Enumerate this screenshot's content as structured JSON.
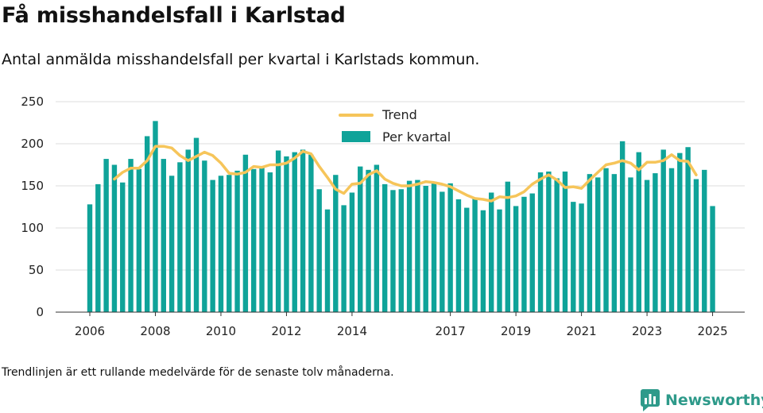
{
  "header": {
    "title": "Få misshandelsfall i Karlstad",
    "subtitle": "Antal anmälda misshandelsfall per kvartal i Karlstads kommun."
  },
  "footnote": "Trendlinjen är ett rullande medelvärde för de senaste tolv månaderna.",
  "brand": {
    "name": "Newsworthy",
    "icon": "bar-chart-speech-icon"
  },
  "colors": {
    "bars": "#0fa399",
    "trend": "#f6c55a",
    "grid": "#dddddd",
    "brand": "#2e9a8a"
  },
  "chart_data": {
    "type": "bar",
    "grid": true,
    "legend_position": "top-center",
    "ylim": [
      0,
      250
    ],
    "yticks": [
      0,
      50,
      100,
      150,
      200,
      250
    ],
    "xtick_labels": [
      {
        "label": "2006",
        "index": 0
      },
      {
        "label": "2008",
        "index": 8
      },
      {
        "label": "2010",
        "index": 16
      },
      {
        "label": "2012",
        "index": 24
      },
      {
        "label": "2014",
        "index": 32
      },
      {
        "label": "2017",
        "index": 44
      },
      {
        "label": "2019",
        "index": 52
      },
      {
        "label": "2021",
        "index": 60
      },
      {
        "label": "2023",
        "index": 68
      },
      {
        "label": "2025",
        "index": 76
      }
    ],
    "series": [
      {
        "name": "Per kvartal",
        "values": [
          128,
          152,
          182,
          175,
          154,
          182,
          170,
          209,
          227,
          182,
          162,
          178,
          193,
          207,
          180,
          157,
          162,
          163,
          168,
          187,
          170,
          172,
          166,
          192,
          185,
          190,
          193,
          187,
          146,
          122,
          163,
          127,
          142,
          173,
          169,
          175,
          152,
          145,
          146,
          156,
          157,
          150,
          155,
          143,
          153,
          134,
          124,
          136,
          121,
          142,
          122,
          155,
          126,
          137,
          141,
          166,
          167,
          159,
          167,
          131,
          129,
          164,
          160,
          171,
          164,
          203,
          160,
          190,
          157,
          165,
          193,
          171,
          189,
          196,
          158,
          169,
          126
        ]
      },
      {
        "name": "Trend",
        "start_index": 3,
        "values": [
          158,
          166,
          171,
          171,
          180,
          197,
          197,
          195,
          186,
          180,
          185,
          190,
          186,
          177,
          165,
          164,
          166,
          173,
          172,
          175,
          175,
          177,
          183,
          191,
          188,
          173,
          160,
          146,
          141,
          152,
          153,
          163,
          168,
          158,
          153,
          150,
          150,
          152,
          155,
          154,
          152,
          149,
          144,
          139,
          135,
          134,
          132,
          137,
          136,
          138,
          143,
          152,
          158,
          163,
          157,
          148,
          149,
          147,
          157,
          166,
          175,
          177,
          180,
          177,
          169,
          178,
          178,
          180,
          187,
          180,
          179,
          163
        ]
      }
    ]
  }
}
